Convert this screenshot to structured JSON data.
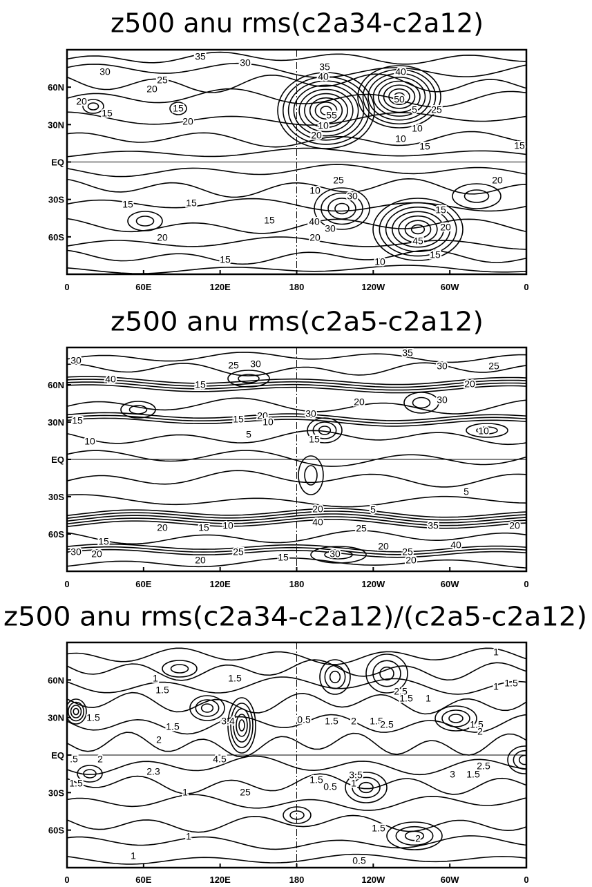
{
  "panels": [
    {
      "title": "z500 anu rms(c2a34-c2a12)",
      "x_tick_labels": [
        "0",
        "60E",
        "120E",
        "180",
        "120W",
        "60W",
        "0"
      ],
      "y_tick_labels": [
        "60N",
        "30N",
        "EQ",
        "30S",
        "60S"
      ],
      "contour_labels": [
        "35",
        "30",
        "30",
        "25",
        "20",
        "20",
        "15",
        "15",
        "20",
        "40",
        "35",
        "40",
        "50",
        "5",
        "25",
        "55",
        "10",
        "20",
        "10",
        "10",
        "15",
        "15",
        "20",
        "25",
        "10",
        "30",
        "15",
        "15",
        "15",
        "15",
        "40",
        "30",
        "20",
        "20",
        "20",
        "45",
        "15",
        "15",
        "10"
      ]
    },
    {
      "title": "z500 anu rms(c2a5-c2a12)",
      "x_tick_labels": [
        "0",
        "60E",
        "120E",
        "180",
        "120W",
        "60W",
        "0"
      ],
      "y_tick_labels": [
        "60N",
        "30N",
        "EQ",
        "30S",
        "60S"
      ],
      "contour_labels": [
        "35",
        "30",
        "25",
        "30",
        "30",
        "25",
        "40",
        "15",
        "20",
        "20",
        "30",
        "15",
        "15",
        "20",
        "10",
        "30",
        "10",
        "10",
        "5",
        "15",
        "5",
        "5",
        "20",
        "15",
        "10",
        "20",
        "40",
        "25",
        "35",
        "20",
        "40",
        "30",
        "20",
        "25",
        "20",
        "25",
        "15",
        "20",
        "15",
        "30",
        "20"
      ]
    },
    {
      "title": "z500 anu rms(c2a34-c2a12)/(c2a5-c2a12)",
      "x_tick_labels": [
        "0",
        "60E",
        "120E",
        "180",
        "120W",
        "60W",
        "0"
      ],
      "y_tick_labels": [
        "60N",
        "30N",
        "EQ",
        "30S",
        "60S"
      ],
      "contour_labels": [
        "1",
        "1",
        "1.5",
        "1.5",
        "1.5",
        "0.5",
        "1.5",
        "2",
        "1.5",
        "2.5",
        "1.5",
        "1",
        "1",
        "1.5",
        "1.5",
        "3.4",
        "2",
        "2.5",
        "1.5",
        "2",
        "4.5",
        ".5",
        "2",
        "2.3",
        "2.5",
        "1.5",
        "3",
        "3.5",
        "1.5",
        "0.5",
        "1",
        "1.5",
        "1",
        "25",
        "1.5",
        "2",
        "1",
        "1",
        "0.5"
      ]
    }
  ]
}
